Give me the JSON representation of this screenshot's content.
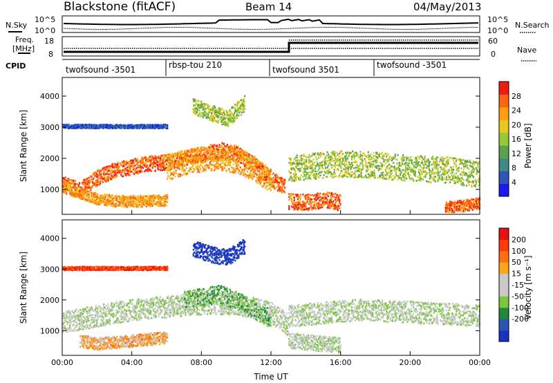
{
  "header": {
    "title": "Blackstone (fitACF)",
    "beam": "Beam 14",
    "date": "04/May/2013"
  },
  "noise_panel": {
    "left_label": "N.Sky",
    "right_label": "N.Search",
    "tick_high": "10^5",
    "tick_low": "10^0"
  },
  "freq_panel": {
    "left_label_1": "Freq.",
    "left_label_2": "[MHz]",
    "left_ticks": [
      "18",
      "8"
    ],
    "right_label": "Nave",
    "right_ticks": [
      "60",
      "0"
    ]
  },
  "cpid_panel": {
    "label": "CPID",
    "segments": [
      {
        "start": 0,
        "end": 6,
        "text": "twofsound -3501"
      },
      {
        "start": 6,
        "end": 12,
        "text": "rbsp-tou 210"
      },
      {
        "start": 12,
        "end": 18,
        "text": "twofsound 3501"
      },
      {
        "start": 18,
        "end": 24,
        "text": "twofsound -3501"
      }
    ]
  },
  "colors": {
    "power": [
      "#1a1aee",
      "#2f55b8",
      "#3d8a86",
      "#5aa34c",
      "#96c83a",
      "#e8c81a",
      "#ff9f10",
      "#ff6414",
      "#ee1c10"
    ],
    "velocity": [
      "#1830c8",
      "#2c55b2",
      "#1e8a3c",
      "#7ac83a",
      "#c8c8c8",
      "#c8c8c8",
      "#ffa51a",
      "#ff7010",
      "#ff3a10",
      "#e81010"
    ]
  },
  "chart_data": [
    {
      "type": "heatmap",
      "name": "power",
      "ylabel": "Slant Range [km]",
      "xlabel": "Time UT",
      "xlim": [
        0,
        24
      ],
      "ylim": [
        200,
        4600
      ],
      "yticks": [
        "1000",
        "2000",
        "3000",
        "4000"
      ],
      "xticks": [
        "00:00",
        "04:00",
        "08:00",
        "12:00",
        "16:00",
        "20:00",
        "00:00"
      ],
      "colorbar": {
        "label": "Power [dB]",
        "ticks": [
          "4",
          "8",
          "12",
          "16",
          "20",
          "24",
          "28"
        ]
      },
      "bands": [
        {
          "t": [
            0.0,
            1.0,
            2.0,
            3.0,
            4.0,
            5.0,
            6.0,
            7.0,
            8.0,
            9.0,
            10.0,
            11.0,
            12.0,
            12.8
          ],
          "r": [
            1200,
            1000,
            1400,
            1650,
            1750,
            1850,
            1900,
            2000,
            2150,
            2280,
            2200,
            1800,
            1350,
            1080
          ],
          "w": 250,
          "level": 7
        },
        {
          "t": [
            0.0,
            1.0,
            2.0,
            3.0,
            4.0,
            5.0,
            6.0
          ],
          "r": [
            1100,
            900,
            720,
            650,
            640,
            650,
            680
          ],
          "w": 180,
          "level": 6
        },
        {
          "t": [
            6.0,
            7.0,
            8.0,
            9.0,
            10.0,
            11.0,
            12.0
          ],
          "r": [
            1700,
            1900,
            2000,
            2050,
            1950,
            1700,
            1300
          ],
          "w": 400,
          "level": 6
        },
        {
          "t": [
            13.0,
            14.0,
            16.0,
            18.0,
            20.0,
            22.0,
            24.0
          ],
          "r": [
            1700,
            1750,
            1850,
            1800,
            1700,
            1650,
            1500
          ],
          "w": 420,
          "level": 4
        },
        {
          "t": [
            13.0,
            14.0,
            15.0,
            16.0
          ],
          "r": [
            650,
            600,
            700,
            600
          ],
          "w": 260,
          "level": 7
        },
        {
          "t": [
            22.0,
            23.0,
            24.0
          ],
          "r": [
            450,
            500,
            580
          ],
          "w": 180,
          "level": 7
        },
        {
          "t": [
            0.0,
            1.0,
            3.0,
            5.0,
            6.0
          ],
          "r": [
            3050,
            3050,
            3050,
            3050,
            3050
          ],
          "w": 60,
          "level": 1
        },
        {
          "t": [
            7.5,
            8.5,
            9.5,
            10.5
          ],
          "r": [
            3700,
            3500,
            3300,
            3800
          ],
          "w": 260,
          "level": 4
        }
      ]
    },
    {
      "type": "heatmap",
      "name": "velocity",
      "ylabel": "Slant Range [km]",
      "xlabel": "Time UT",
      "xlim": [
        0,
        24
      ],
      "ylim": [
        200,
        4600
      ],
      "yticks": [
        "1000",
        "2000",
        "3000",
        "4000"
      ],
      "xticks": [
        "00:00",
        "04:00",
        "08:00",
        "12:00",
        "16:00",
        "20:00",
        "00:00"
      ],
      "colorbar": {
        "label": "Velocity [m s⁻¹]",
        "ticks": [
          "200",
          "100",
          "50",
          "15",
          "-15",
          "-50",
          "-100",
          "-200"
        ]
      },
      "bands": [
        {
          "t": [
            0.0,
            2.0,
            4.0,
            6.0,
            8.0,
            10.0,
            12.0,
            13.0
          ],
          "r": [
            1300,
            1500,
            1700,
            1800,
            1900,
            1900,
            1600,
            1200
          ],
          "w": 350,
          "level": 4
        },
        {
          "t": [
            7.0,
            8.0,
            9.0,
            10.0,
            11.0,
            12.0
          ],
          "r": [
            2000,
            2100,
            2200,
            2000,
            1700,
            1400
          ],
          "w": 300,
          "level": 3
        },
        {
          "t": [
            1.0,
            2.0,
            3.0,
            4.0,
            5.0,
            6.0
          ],
          "r": [
            700,
            600,
            650,
            700,
            750,
            800
          ],
          "w": 200,
          "level": 6
        },
        {
          "t": [
            13.0,
            15.0,
            17.0,
            19.0,
            21.0,
            23.0,
            24.0
          ],
          "r": [
            1500,
            1600,
            1700,
            1650,
            1600,
            1550,
            1500
          ],
          "w": 350,
          "level": 4
        },
        {
          "t": [
            13.0,
            14.0,
            15.0,
            16.0
          ],
          "r": [
            700,
            650,
            600,
            550
          ],
          "w": 250,
          "level": 4
        },
        {
          "t": [
            7.5,
            8.5,
            9.5,
            10.5
          ],
          "r": [
            3700,
            3500,
            3400,
            3800
          ],
          "w": 260,
          "level": 0
        },
        {
          "t": [
            0.0,
            2.0,
            4.0,
            6.0
          ],
          "r": [
            3050,
            3050,
            3050,
            3050
          ],
          "w": 60,
          "level": 8
        }
      ]
    }
  ]
}
